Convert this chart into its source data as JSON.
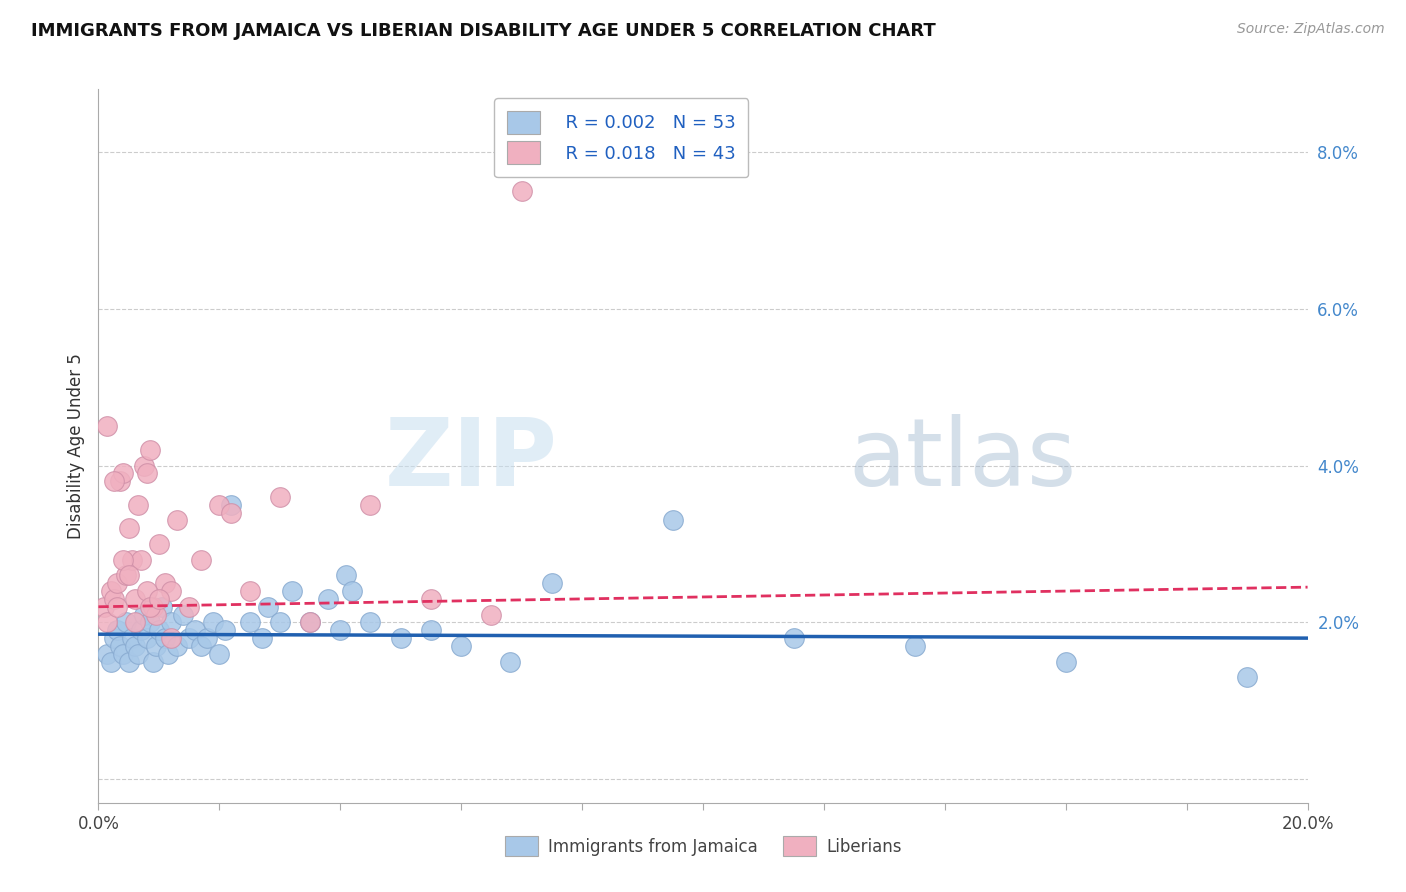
{
  "title": "IMMIGRANTS FROM JAMAICA VS LIBERIAN DISABILITY AGE UNDER 5 CORRELATION CHART",
  "source": "Source: ZipAtlas.com",
  "ylabel": "Disability Age Under 5",
  "ytick_vals": [
    0.0,
    2.0,
    4.0,
    6.0,
    8.0
  ],
  "ytick_labels": [
    "",
    "2.0%",
    "4.0%",
    "6.0%",
    "8.0%"
  ],
  "xlim": [
    0.0,
    20.0
  ],
  "ylim": [
    -0.3,
    8.8
  ],
  "legend_r1": "R = 0.002",
  "legend_n1": "N = 53",
  "legend_r2": "R = 0.018",
  "legend_n2": "N = 43",
  "blue_color": "#a8c8e8",
  "pink_color": "#f0b0c0",
  "blue_line_color": "#2060b0",
  "pink_line_color": "#e03060",
  "legend_text_color": "#2060c0",
  "watermark_zip": "ZIP",
  "watermark_atlas": "atlas",
  "jamaica_x": [
    0.15,
    0.2,
    0.25,
    0.3,
    0.35,
    0.4,
    0.45,
    0.5,
    0.55,
    0.6,
    0.65,
    0.7,
    0.75,
    0.8,
    0.85,
    0.9,
    0.95,
    1.0,
    1.05,
    1.1,
    1.15,
    1.2,
    1.3,
    1.4,
    1.5,
    1.6,
    1.7,
    1.8,
    1.9,
    2.0,
    2.1,
    2.2,
    2.5,
    2.7,
    2.8,
    3.0,
    3.2,
    3.5,
    3.8,
    4.0,
    4.1,
    4.2,
    4.5,
    5.0,
    5.5,
    6.0,
    6.8,
    7.5,
    9.5,
    11.5,
    13.5,
    16.0,
    19.0
  ],
  "jamaica_y": [
    1.6,
    1.5,
    1.8,
    1.9,
    1.7,
    1.6,
    2.0,
    1.5,
    1.8,
    1.7,
    1.6,
    1.9,
    2.1,
    1.8,
    2.0,
    1.5,
    1.7,
    1.9,
    2.2,
    1.8,
    1.6,
    2.0,
    1.7,
    2.1,
    1.8,
    1.9,
    1.7,
    1.8,
    2.0,
    1.6,
    1.9,
    3.5,
    2.0,
    1.8,
    2.2,
    2.0,
    2.4,
    2.0,
    2.3,
    1.9,
    2.6,
    2.4,
    2.0,
    1.8,
    1.9,
    1.7,
    1.5,
    2.5,
    3.3,
    1.8,
    1.7,
    1.5,
    1.3
  ],
  "liberia_x": [
    0.1,
    0.15,
    0.2,
    0.25,
    0.3,
    0.35,
    0.4,
    0.45,
    0.5,
    0.55,
    0.6,
    0.65,
    0.7,
    0.75,
    0.8,
    0.85,
    0.9,
    0.95,
    1.0,
    1.1,
    1.2,
    1.3,
    1.5,
    1.7,
    2.0,
    2.2,
    2.5,
    3.0,
    3.5,
    4.5,
    5.5,
    6.5,
    0.15,
    0.25,
    0.3,
    0.4,
    0.5,
    0.6,
    0.8,
    0.85,
    1.0,
    1.2,
    7.0
  ],
  "liberia_y": [
    2.2,
    2.0,
    2.4,
    2.3,
    2.5,
    3.8,
    3.9,
    2.6,
    3.2,
    2.8,
    2.0,
    3.5,
    2.8,
    4.0,
    3.9,
    4.2,
    2.2,
    2.1,
    3.0,
    2.5,
    2.4,
    3.3,
    2.2,
    2.8,
    3.5,
    3.4,
    2.4,
    3.6,
    2.0,
    3.5,
    2.3,
    2.1,
    4.5,
    3.8,
    2.2,
    2.8,
    2.6,
    2.3,
    2.4,
    2.2,
    2.3,
    1.8,
    7.5
  ],
  "blue_line_x": [
    0.0,
    20.0
  ],
  "blue_line_y": [
    1.85,
    1.8
  ],
  "pink_line_x": [
    0.0,
    20.0
  ],
  "pink_line_y": [
    2.2,
    2.45
  ]
}
